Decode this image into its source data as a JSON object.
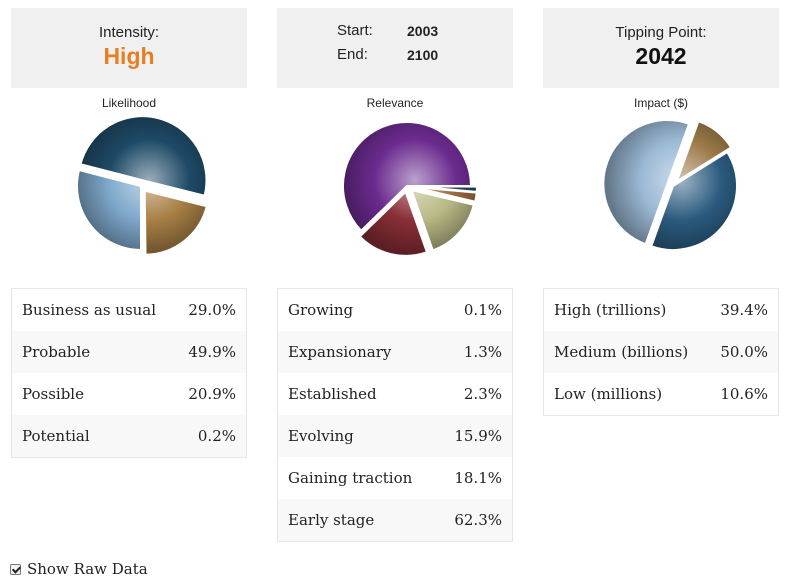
{
  "header": {
    "intensity_label": "Intensity:",
    "intensity_value": "High",
    "start_label": "Start:",
    "start_value": "2003",
    "end_label": "End:",
    "end_value": "2100",
    "tipping_label": "Tipping Point:",
    "tipping_value": "2042"
  },
  "colors": {
    "intensity_value": "#e87e22",
    "header_bg": "#f0f0f0"
  },
  "chart_data": [
    {
      "type": "pie",
      "title": "Likelihood",
      "slices": [
        {
          "label": "Business as usual",
          "value": 29.0,
          "display": "29.0%",
          "color": "#7fa9cc"
        },
        {
          "label": "Probable",
          "value": 49.9,
          "display": "49.9%",
          "color": "#1e4a66"
        },
        {
          "label": "Possible",
          "value": 20.9,
          "display": "20.9%",
          "color": "#a87f45"
        },
        {
          "label": "Potential",
          "value": 0.2,
          "display": "0.2%",
          "color": "#8aa0b4"
        }
      ]
    },
    {
      "type": "pie",
      "title": "Relevance",
      "slices": [
        {
          "label": "Growing",
          "value": 0.1,
          "display": "0.1%",
          "color": "#6b8fb3"
        },
        {
          "label": "Expansionary",
          "value": 1.3,
          "display": "1.3%",
          "color": "#1f4666"
        },
        {
          "label": "Established",
          "value": 2.3,
          "display": "2.3%",
          "color": "#9b6a3c"
        },
        {
          "label": "Evolving",
          "value": 15.9,
          "display": "15.9%",
          "color": "#b8b985"
        },
        {
          "label": "Gaining traction",
          "value": 18.1,
          "display": "18.1%",
          "color": "#8a2f37"
        },
        {
          "label": "Early stage",
          "value": 62.3,
          "display": "62.3%",
          "color": "#6b2b8f"
        }
      ]
    },
    {
      "type": "pie",
      "title": "Impact ($)",
      "slices": [
        {
          "label": "High (trillions)",
          "value": 39.4,
          "display": "39.4%",
          "color": "#2a5a7e"
        },
        {
          "label": "Medium (billions)",
          "value": 50.0,
          "display": "50.0%",
          "color": "#9ab8d4"
        },
        {
          "label": "Low (millions)",
          "value": 10.6,
          "display": "10.6%",
          "color": "#9c7a48"
        }
      ]
    }
  ],
  "show_raw_data_label": "Show Raw Data",
  "show_raw_data_checked": true
}
